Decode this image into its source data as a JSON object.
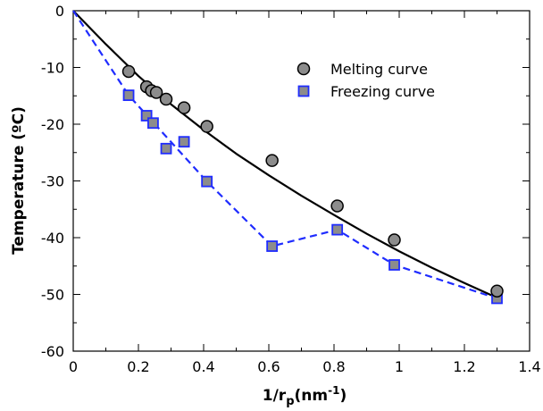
{
  "chart_data": {
    "type": "scatter",
    "xlabel_main": "1/r",
    "xlabel_sub": "p",
    "xlabel_unit_open": "(nm",
    "xlabel_unit_sup": "-1",
    "xlabel_unit_close": ")",
    "ylabel": "Temperature (ºC)",
    "xlim": [
      0,
      1.4
    ],
    "ylim": [
      -60,
      0
    ],
    "x_ticks": [
      "0",
      "0.2",
      "0.4",
      "0.6",
      "0.8",
      "1",
      "1.2",
      "1.4"
    ],
    "x_tick_values": [
      0,
      0.2,
      0.4,
      0.6,
      0.8,
      1.0,
      1.2,
      1.4
    ],
    "y_ticks": [
      "0",
      "-10",
      "-20",
      "-30",
      "-40",
      "-50",
      "-60"
    ],
    "y_tick_values": [
      0,
      -10,
      -20,
      -30,
      -40,
      -50,
      -60
    ],
    "legend_position": "top-right",
    "series": [
      {
        "name": "Melting curve",
        "marker": "circle",
        "color": "#8c8c8c",
        "edge_color": "#000000",
        "fit_line": {
          "style": "solid",
          "color": "#000000",
          "x": [
            0,
            0.1,
            0.2,
            0.3,
            0.4,
            0.5,
            0.6,
            0.7,
            0.8,
            0.9,
            1.0,
            1.1,
            1.2,
            1.3
          ],
          "y": [
            0,
            -5.9,
            -11.5,
            -16.5,
            -21.0,
            -25.2,
            -29.0,
            -32.6,
            -36.0,
            -39.3,
            -42.4,
            -45.3,
            -48.0,
            -50.6
          ]
        },
        "x": [
          0.17,
          0.225,
          0.24,
          0.255,
          0.285,
          0.34,
          0.41,
          0.61,
          0.81,
          0.985,
          1.3
        ],
        "y": [
          -10.7,
          -13.4,
          -14.1,
          -14.4,
          -15.6,
          -17.1,
          -20.4,
          -26.4,
          -34.4,
          -40.4,
          -49.4
        ]
      },
      {
        "name": "Freezing curve",
        "marker": "square",
        "color": "#8c8c8c",
        "edge_color": "#1f2cff",
        "connect_line": {
          "style": "dashed",
          "color": "#1f2cff",
          "x": [
            0,
            0.17,
            0.41,
            0.61,
            0.81,
            0.985,
            1.3
          ],
          "y": [
            0,
            -14.9,
            -30.1,
            -41.5,
            -38.6,
            -44.8,
            -50.7
          ]
        },
        "x": [
          0.17,
          0.225,
          0.245,
          0.285,
          0.34,
          0.41,
          0.61,
          0.81,
          0.985,
          1.3
        ],
        "y": [
          -14.9,
          -18.5,
          -19.8,
          -24.3,
          -23.1,
          -30.1,
          -41.5,
          -38.6,
          -44.8,
          -50.7
        ]
      }
    ]
  }
}
